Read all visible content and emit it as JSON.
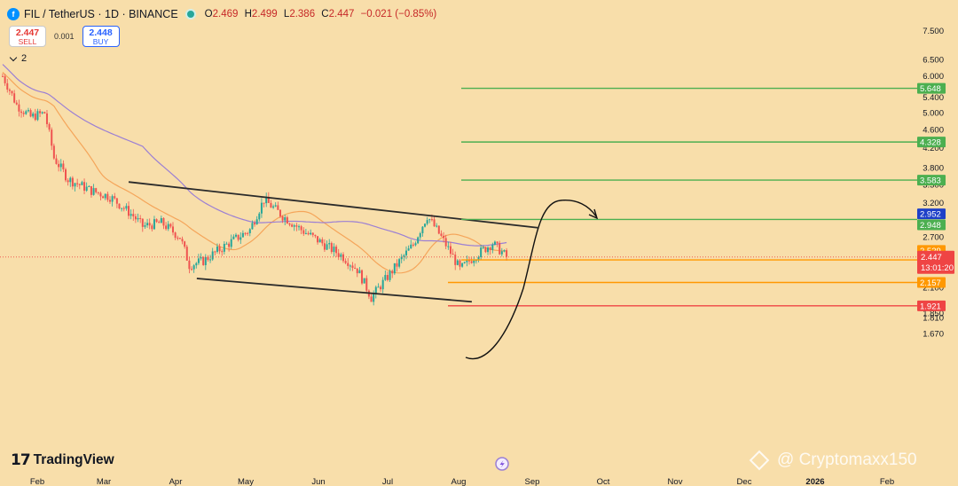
{
  "header": {
    "symbol_icon": "filecoin-icon",
    "title": "FIL / TetherUS · 1D · BINANCE",
    "status": "market-open-dot",
    "open_label": "O",
    "open": "2.469",
    "high_label": "H",
    "high": "2.499",
    "low_label": "L",
    "low": "2.386",
    "close_label": "C",
    "close": "2.447",
    "change": "−0.021 (−0.85%)"
  },
  "trade": {
    "sell_price": "2.447",
    "sell_label": "SELL",
    "spread": "0.001",
    "buy_price": "2.448",
    "buy_label": "BUY"
  },
  "indicators": {
    "count": "2"
  },
  "branding": {
    "logo_text": "TradingView",
    "watermark": "@ Cryptomaxx150"
  },
  "colors": {
    "background": "#f8deaa",
    "up": "#26a69a",
    "down": "#ef5350",
    "ma_orange": "#f5a55a",
    "ma_purple": "#9b7fd4",
    "resistance": "#4caf50",
    "support_orange": "#ff9800",
    "support_red": "#ef4444"
  },
  "chart_data": {
    "type": "candlestick",
    "x_axis": [
      "Feb",
      "Mar",
      "Apr",
      "May",
      "Jun",
      "Jul",
      "Aug",
      "Sep",
      "Oct",
      "Nov",
      "Dec",
      "2026",
      "Feb"
    ],
    "y_axis": [
      "7.500",
      "6.500",
      "6.000",
      "5.400",
      "5.000",
      "4.600",
      "4.200",
      "3.800",
      "3.500",
      "3.200",
      "2.700",
      "2.100",
      "1.850",
      "1.810",
      "1.670"
    ],
    "ylim": [
      1.6,
      7.6
    ],
    "scale": "log",
    "grid": false,
    "price_levels": [
      {
        "name": "resistance",
        "value": "5.648",
        "color": "#4caf50"
      },
      {
        "name": "resistance",
        "value": "4.328",
        "color": "#4caf50"
      },
      {
        "name": "resistance",
        "value": "3.583",
        "color": "#4caf50"
      },
      {
        "name": "resistance",
        "value": "2.948",
        "color": "#4caf50"
      },
      {
        "name": "moving-average",
        "value": "2.952",
        "color": "#1e40c8"
      },
      {
        "name": "moving-average",
        "value": "2.529",
        "color": "#ff9800"
      },
      {
        "name": "support",
        "value": "2.412",
        "color": "#ff9800"
      },
      {
        "name": "support",
        "value": "2.157",
        "color": "#ff9800"
      },
      {
        "name": "support",
        "value": "1.921",
        "color": "#ef4444"
      }
    ],
    "last_price": {
      "value": "2.447",
      "countdown": "13:01:20",
      "color": "#ef4444"
    },
    "channel": {
      "upper": [
        [
          "2025-03-01",
          3.55
        ],
        [
          "2025-08-22",
          2.83
        ]
      ],
      "lower": [
        [
          "2025-03-30",
          2.2
        ],
        [
          "2025-07-25",
          1.96
        ]
      ]
    },
    "projection": [
      [
        "2025-08-05",
        2.45
      ],
      [
        "2025-08-15",
        2.6
      ],
      [
        "2025-08-27",
        3.2
      ],
      [
        "2025-09-08",
        3.75
      ],
      [
        "2025-09-20",
        3.75
      ],
      [
        "2025-09-24",
        3.62
      ]
    ]
  }
}
